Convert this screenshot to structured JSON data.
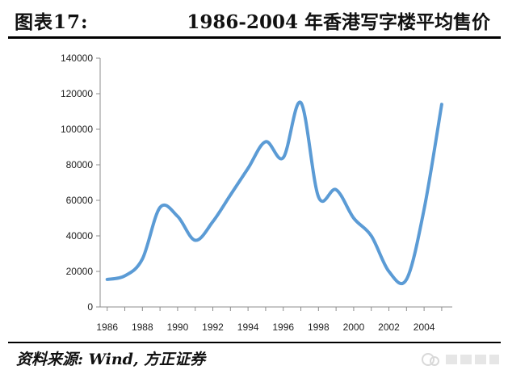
{
  "header": {
    "figure_label": "图表17:",
    "title": "1986-2004 年香港写字楼平均售价"
  },
  "footer": {
    "source": "资料来源: Wind, 方正证券"
  },
  "colors": {
    "line": "#5b9bd5",
    "axis": "#8c8c8c",
    "text": "#222222"
  },
  "chart_data": {
    "type": "line",
    "title": "",
    "xlabel": "",
    "ylabel": "",
    "grid": false,
    "legend": "none",
    "xlim": [
      1985.6,
      2005.6
    ],
    "ylim": [
      0,
      140000
    ],
    "x_ticks": [
      1986,
      1988,
      1990,
      1992,
      1994,
      1996,
      1998,
      2000,
      2002,
      2004
    ],
    "y_ticks": [
      0,
      20000,
      40000,
      60000,
      80000,
      100000,
      120000,
      140000
    ],
    "series": [
      {
        "name": "",
        "x": [
          1986,
          1987,
          1988,
          1989,
          1990,
          1991,
          1992,
          1993,
          1994,
          1995,
          1996,
          1997,
          1998,
          1999,
          2000,
          2001,
          2002,
          2003,
          2004,
          2005
        ],
        "values": [
          15500,
          17500,
          27000,
          56000,
          51000,
          37500,
          48000,
          63000,
          78000,
          93000,
          84000,
          115000,
          62000,
          66000,
          50000,
          40000,
          20000,
          15500,
          55000,
          114000
        ]
      }
    ]
  }
}
